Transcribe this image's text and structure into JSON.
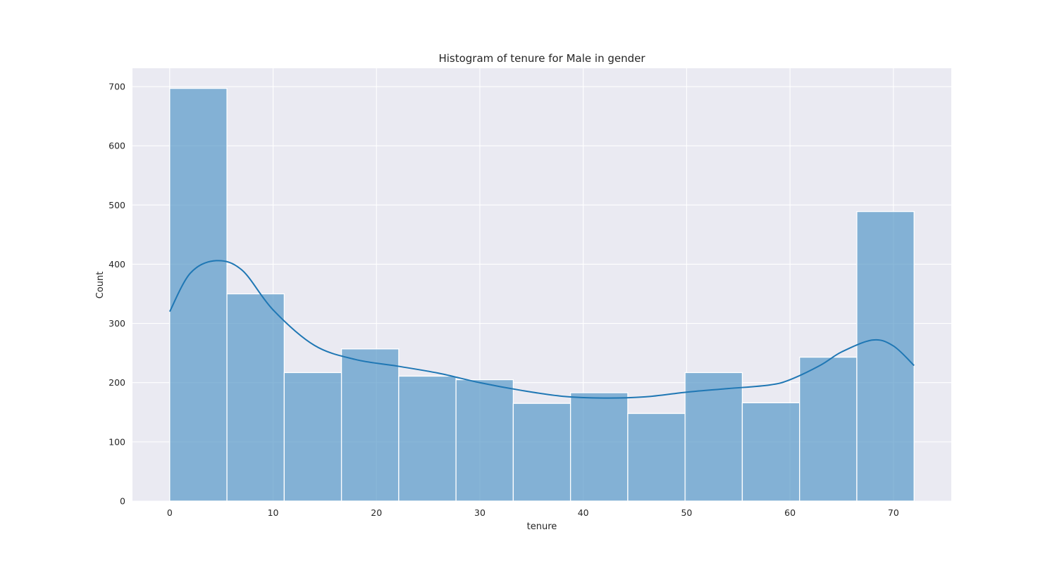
{
  "chart_data": {
    "type": "bar",
    "subtype": "histogram_with_kde",
    "title": "Histogram of tenure for Male in gender",
    "xlabel": "tenure",
    "ylabel": "Count",
    "xlim": [
      -3.6,
      75.6
    ],
    "ylim": [
      0,
      731
    ],
    "xticks": [
      0,
      10,
      20,
      30,
      40,
      50,
      60,
      70
    ],
    "yticks": [
      0,
      100,
      200,
      300,
      400,
      500,
      600,
      700
    ],
    "grid": true,
    "bin_edges": [
      0,
      5.538,
      11.077,
      16.615,
      22.154,
      27.692,
      33.231,
      38.769,
      44.308,
      49.846,
      55.385,
      60.923,
      66.462,
      72
    ],
    "counts": [
      697,
      350,
      217,
      257,
      211,
      205,
      165,
      183,
      148,
      217,
      166,
      243,
      489
    ],
    "bar_color": "#5b9bc9",
    "kde": {
      "color": "#1f77b4",
      "x": [
        0,
        2,
        4.5,
        7,
        10,
        14,
        18,
        22,
        26,
        30,
        34,
        38,
        42,
        46,
        50,
        54,
        58,
        60,
        63,
        65,
        68,
        70,
        72
      ],
      "y": [
        320,
        385,
        406,
        390,
        323,
        263,
        239,
        228,
        216,
        200,
        187,
        177,
        174,
        176,
        184,
        190,
        196,
        205,
        230,
        252,
        272,
        262,
        229
      ]
    }
  }
}
